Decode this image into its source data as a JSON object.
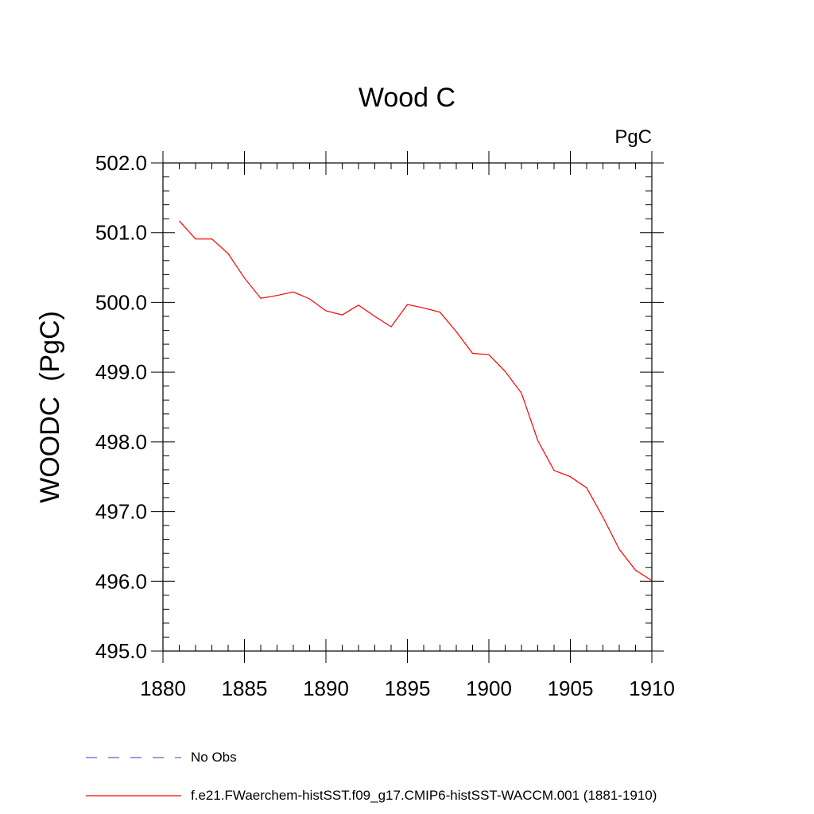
{
  "chart_data": {
    "type": "line",
    "title": "Wood C",
    "units_label": "PgC",
    "xlabel": "",
    "ylabel": "WOODC  (PgC)",
    "xlim": [
      1880,
      1910
    ],
    "ylim": [
      495.0,
      502.0
    ],
    "x_ticks": [
      1880,
      1885,
      1890,
      1895,
      1900,
      1905,
      1910
    ],
    "x_tick_labels": [
      "1880",
      "1885",
      "1890",
      "1895",
      "1900",
      "1905",
      "1910"
    ],
    "y_ticks": [
      495,
      496,
      497,
      498,
      499,
      500,
      501,
      502
    ],
    "y_tick_labels": [
      "495.0",
      "496.0",
      "497.0",
      "498.0",
      "499.0",
      "500.0",
      "501.0",
      "502.0"
    ],
    "grid": false,
    "legend_position": "bottom",
    "series": [
      {
        "name": "f.e21.FWaerchem-histSST.f09_g17.CMIP6-histSST-WACCM.001 (1881-1910)",
        "color": "#ff0000",
        "style": "solid",
        "x": [
          1881,
          1882,
          1883,
          1884,
          1885,
          1886,
          1887,
          1888,
          1889,
          1890,
          1891,
          1892,
          1893,
          1894,
          1895,
          1896,
          1897,
          1898,
          1899,
          1900,
          1901,
          1902,
          1903,
          1904,
          1905,
          1906,
          1907,
          1908,
          1909,
          1910
        ],
        "y": [
          501.17,
          500.91,
          500.91,
          500.7,
          500.35,
          500.06,
          500.1,
          500.15,
          500.05,
          499.88,
          499.82,
          499.96,
          499.8,
          499.65,
          499.97,
          499.92,
          499.86,
          499.58,
          499.27,
          499.25,
          499.01,
          498.7,
          498.02,
          497.59,
          497.5,
          497.34,
          496.92,
          496.46,
          496.16,
          496.01
        ]
      }
    ],
    "legend": [
      {
        "label": "No Obs",
        "color": "#6a5acd",
        "style": "dashed"
      },
      {
        "label": "f.e21.FWaerchem-histSST.f09_g17.CMIP6-histSST-WACCM.001 (1881-1910)",
        "color": "#ff0000",
        "style": "solid"
      }
    ]
  }
}
